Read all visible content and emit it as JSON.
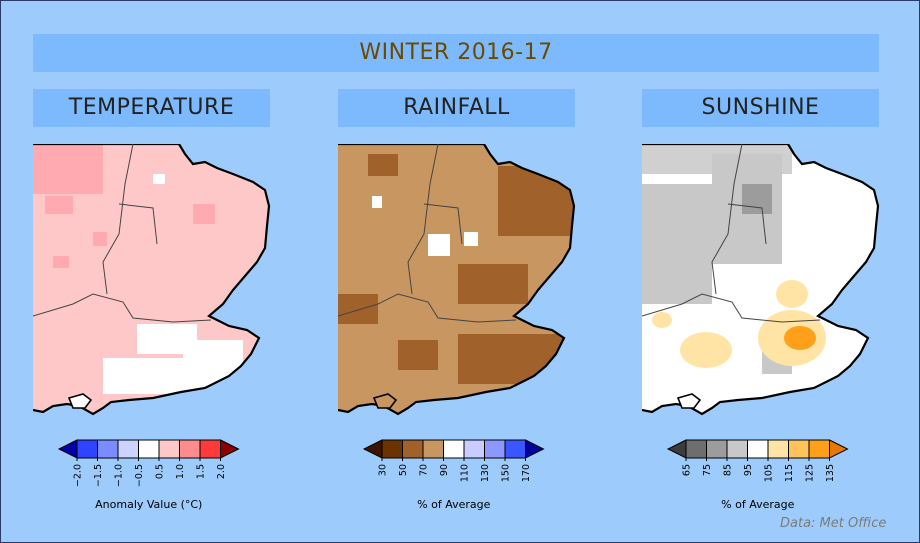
{
  "title": "WINTER 2016-17",
  "panels": [
    {
      "heading": "TEMPERATURE",
      "legend_label": "Anomaly Value (°C)",
      "ticks": [
        "−2.0",
        "−1.5",
        "−1.0",
        "−0.5",
        "0.5",
        "1.0",
        "1.5",
        "2.0"
      ],
      "colors": {
        "min_arrow": "#0000a8",
        "boxes": [
          "#2d45ff",
          "#7a8cff",
          "#cdd3ff",
          "#ffffff",
          "#ffc8c8",
          "#ff8c8c",
          "#ff3a3a"
        ],
        "max_arrow": "#8c0000"
      }
    },
    {
      "heading": "RAINFALL",
      "legend_label": "% of Average",
      "ticks": [
        "30",
        "50",
        "70",
        "90",
        "110",
        "130",
        "150",
        "170"
      ],
      "colors": {
        "min_arrow": "#3d1400",
        "boxes": [
          "#6b3300",
          "#a0612a",
          "#c89660",
          "#ffffff",
          "#c8ccff",
          "#8d98ff",
          "#3a57ff"
        ],
        "max_arrow": "#00009b"
      }
    },
    {
      "heading": "SUNSHINE",
      "legend_label": "% of Average",
      "ticks": [
        "65",
        "75",
        "85",
        "95",
        "105",
        "115",
        "125",
        "135"
      ],
      "colors": {
        "min_arrow": "#3c3c3c",
        "boxes": [
          "#6e6e6e",
          "#9c9c9c",
          "#c8c8c8",
          "#ffffff",
          "#ffe4a6",
          "#ffc35c",
          "#ff9f1a"
        ],
        "max_arrow": "#e67a00"
      }
    }
  ],
  "credit": "Data: Met Office"
}
